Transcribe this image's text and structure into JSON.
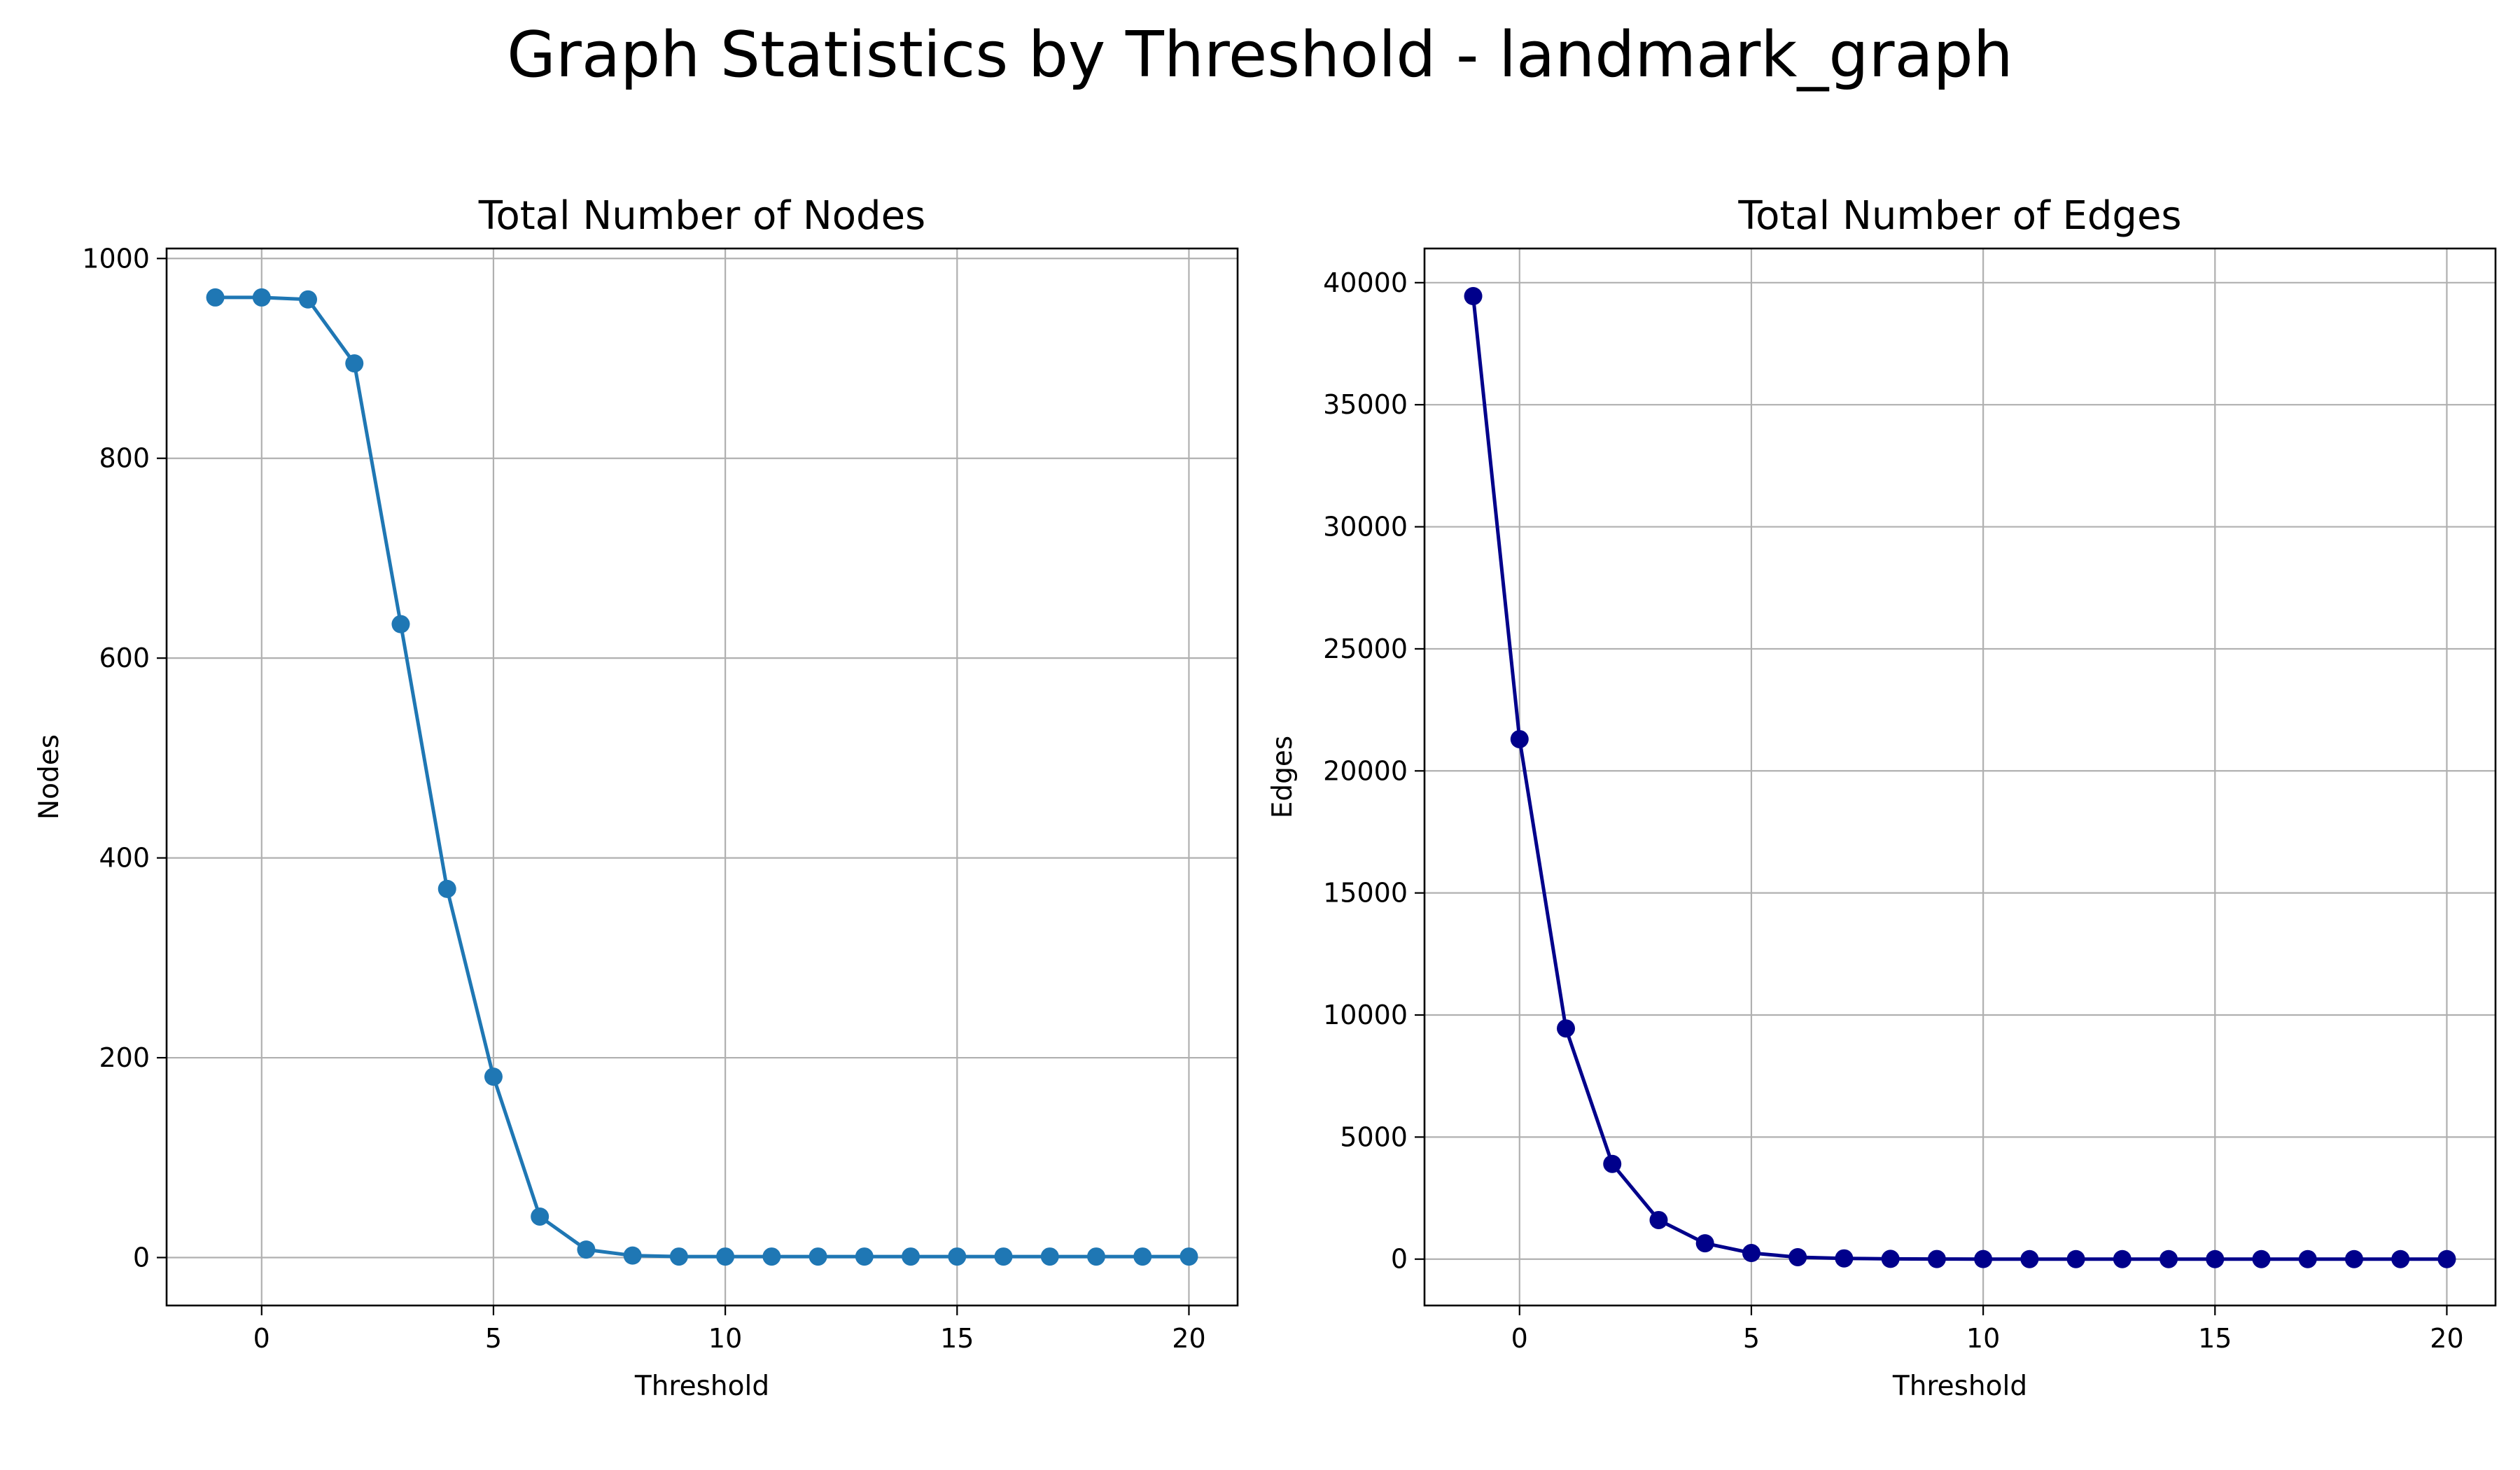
{
  "figure": {
    "suptitle": "Graph Statistics by Threshold - landmark_graph"
  },
  "chart_data": [
    {
      "type": "line",
      "title": "Total Number of Nodes",
      "xlabel": "Threshold",
      "ylabel": "Nodes",
      "x": [
        -1,
        0,
        1,
        2,
        3,
        4,
        5,
        6,
        7,
        8,
        9,
        10,
        11,
        12,
        13,
        14,
        15,
        16,
        17,
        18,
        19,
        20
      ],
      "series": [
        {
          "values": [
            961,
            961,
            959,
            895,
            634,
            369,
            181,
            41,
            8,
            2,
            1,
            1,
            1,
            1,
            1,
            1,
            1,
            1,
            1,
            1,
            1,
            1
          ],
          "color": "#1f77b4",
          "marker": "circle"
        }
      ],
      "xlim": [
        -2.05,
        21.05
      ],
      "ylim": [
        -48,
        1010
      ],
      "xticks": [
        0,
        5,
        10,
        15,
        20
      ],
      "yticks": [
        0,
        200,
        400,
        600,
        800,
        1000
      ],
      "grid": true
    },
    {
      "type": "line",
      "title": "Total Number of Edges",
      "xlabel": "Threshold",
      "ylabel": "Edges",
      "x": [
        -1,
        0,
        1,
        2,
        3,
        4,
        5,
        6,
        7,
        8,
        9,
        10,
        11,
        12,
        13,
        14,
        15,
        16,
        17,
        18,
        19,
        20
      ],
      "series": [
        {
          "values": [
            39450,
            21300,
            9450,
            3900,
            1600,
            650,
            250,
            80,
            30,
            10,
            5,
            2,
            1,
            1,
            1,
            1,
            1,
            1,
            1,
            1,
            1,
            1
          ],
          "color": "#00008b",
          "marker": "circle"
        }
      ],
      "xlim": [
        -2.05,
        21.05
      ],
      "ylim": [
        -1900,
        41400
      ],
      "xticks": [
        0,
        5,
        10,
        15,
        20
      ],
      "yticks": [
        0,
        5000,
        10000,
        15000,
        20000,
        25000,
        30000,
        35000,
        40000
      ],
      "grid": true
    }
  ]
}
